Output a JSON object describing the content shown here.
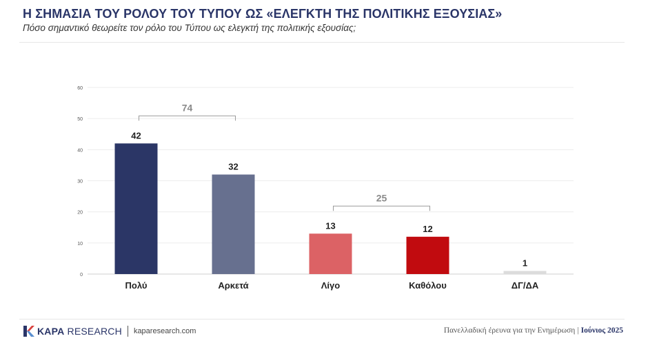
{
  "header": {
    "title": "Η ΣΗΜΑΣΙΑ ΤΟΥ ΡΟΛΟΥ ΤΟΥ ΤΥΠΟΥ ΩΣ «ΕΛΕΓΚΤΗ ΤΗΣ ΠΟΛΙΤΙΚΗΣ ΕΞΟΥΣΙΑΣ»",
    "subtitle": "Πόσο σημαντικό θεωρείτε τον ρόλο του Τύπου ως ελεγκτή της πολιτικής εξουσίας;"
  },
  "chart_data": {
    "type": "bar",
    "categories": [
      "Πολύ",
      "Αρκετά",
      "Λίγο",
      "Καθόλου",
      "ΔΓ/ΔΑ"
    ],
    "values": [
      42,
      32,
      13,
      12,
      1
    ],
    "colors": [
      "#2b3666",
      "#67708f",
      "#dc6265",
      "#c10b0f",
      "#dcdcdc"
    ],
    "ylim": [
      0,
      60
    ],
    "yticks": [
      0,
      10,
      20,
      30,
      40,
      50,
      60
    ],
    "grid": true,
    "xlabel": "",
    "ylabel": "",
    "groups": [
      {
        "label": "74",
        "from": 0,
        "to": 1
      },
      {
        "label": "25",
        "from": 2,
        "to": 3
      }
    ]
  },
  "footer": {
    "brand_bold": "KAPA",
    "brand_rest": "RESEARCH",
    "website": "kaparesearch.com",
    "survey": "Πανελλαδική έρευνα για την Ενημέρωση",
    "date": "Ιούνιος 2025",
    "accent": "#2a3568"
  }
}
